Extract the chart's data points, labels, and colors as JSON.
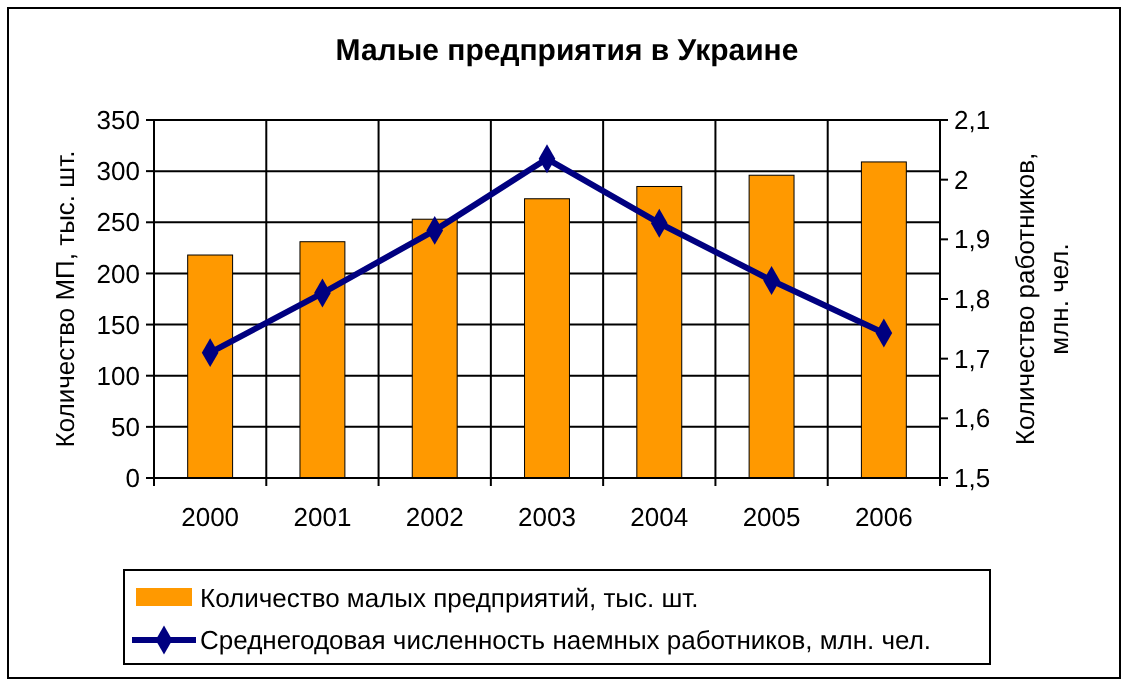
{
  "chart_data": {
    "type": "bar",
    "title": "Малые предприятия в Украине",
    "ylabel": "Количество МП, тыс. шт.",
    "y2label": "Количество работников, млн. чел.",
    "categories": [
      "2000",
      "2001",
      "2002",
      "2003",
      "2004",
      "2005",
      "2006"
    ],
    "series": [
      {
        "name": "Количество малых предприятий, тыс. шт.",
        "color": "#ff9900",
        "values": [
          218,
          231,
          253,
          273,
          285,
          296,
          309
        ]
      },
      {
        "name": "Среднегодовая численность наемных работников, млн. чел.",
        "type": "line",
        "axis": "y2",
        "color": "#000080",
        "values": [
          1.71,
          1.81,
          1.915,
          2.035,
          1.927,
          1.831,
          1.743
        ]
      }
    ],
    "ylim": [
      0,
      350
    ],
    "yticks": [
      0,
      50,
      100,
      150,
      200,
      250,
      300,
      350
    ],
    "y2lim": [
      1.5,
      2.1
    ],
    "y2ticks": [
      {
        "value": 1.5,
        "label": "1,5"
      },
      {
        "value": 1.6,
        "label": "1,6"
      },
      {
        "value": 1.7,
        "label": "1,7"
      },
      {
        "value": 1.8,
        "label": "1,8"
      },
      {
        "value": 1.9,
        "label": "1,9"
      },
      {
        "value": 2,
        "label": "2"
      },
      {
        "value": 2.1,
        "label": "2,1"
      }
    ],
    "grid": true,
    "legend": "bottom",
    "marker": "diamond",
    "line_style": "solid"
  }
}
